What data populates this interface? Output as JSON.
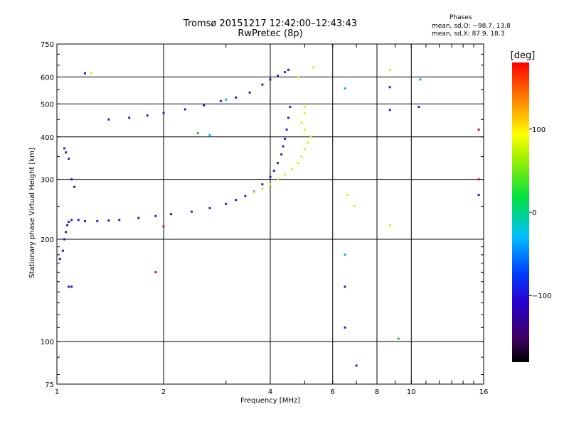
{
  "header": {
    "title_line1": "Tromsø 20151217 12:42:00–12:43:43",
    "title_line2": "RwPretec (8p)",
    "phases_heading": "Phases",
    "phases_o": "mean, sd,O: −98.7, 13.8",
    "phases_x": "mean, sd,X:  87.9, 18.3"
  },
  "colorbar": {
    "label": "[deg]",
    "range": [
      -180,
      180
    ],
    "tick_labels": [
      "100",
      "0",
      "−100"
    ],
    "tick_values": [
      100,
      0,
      -100
    ]
  },
  "chart_data": {
    "type": "scatter",
    "xlabel": "Frequency [MHz]",
    "ylabel": "Stationary phase Virtual Height [km]",
    "xscale": "log",
    "yscale": "log",
    "xlim": [
      1,
      16
    ],
    "ylim": [
      75,
      750
    ],
    "x_ticks": [
      1,
      2,
      4,
      6,
      8,
      10,
      16
    ],
    "x_tick_labels": [
      "1",
      "2",
      "4",
      "6",
      "8",
      "10",
      "16"
    ],
    "y_ticks": [
      75,
      100,
      200,
      300,
      400,
      500,
      600,
      750
    ],
    "y_tick_labels": [
      "75",
      "100",
      "200",
      "300",
      "400",
      "500",
      "600",
      "750"
    ],
    "grid": true,
    "series": [
      {
        "color": "#2020d0",
        "points": [
          [
            1.02,
            175
          ],
          [
            1.04,
            185
          ],
          [
            1.05,
            200
          ],
          [
            1.06,
            210
          ],
          [
            1.07,
            220
          ],
          [
            1.08,
            225
          ],
          [
            1.1,
            228
          ],
          [
            1.15,
            228
          ],
          [
            1.2,
            226
          ],
          [
            1.3,
            226
          ],
          [
            1.4,
            227
          ],
          [
            1.5,
            228
          ],
          [
            1.7,
            231
          ],
          [
            1.9,
            234
          ],
          [
            2.1,
            237
          ],
          [
            2.4,
            241
          ],
          [
            2.7,
            247
          ],
          [
            3.0,
            254
          ],
          [
            3.2,
            261
          ],
          [
            3.4,
            268
          ],
          [
            3.6,
            276
          ],
          [
            3.8,
            290
          ],
          [
            4.0,
            305
          ],
          [
            4.1,
            318
          ],
          [
            4.2,
            335
          ],
          [
            4.3,
            355
          ],
          [
            4.35,
            375
          ],
          [
            4.4,
            395
          ],
          [
            4.45,
            420
          ],
          [
            4.5,
            455
          ],
          [
            4.55,
            490
          ],
          [
            1.05,
            370
          ],
          [
            1.06,
            360
          ],
          [
            1.08,
            345
          ],
          [
            1.1,
            300
          ],
          [
            1.12,
            285
          ],
          [
            1.08,
            145
          ],
          [
            1.1,
            145
          ],
          [
            1.4,
            450
          ],
          [
            1.6,
            455
          ],
          [
            1.8,
            462
          ],
          [
            2.0,
            470
          ],
          [
            2.3,
            482
          ],
          [
            2.6,
            495
          ],
          [
            2.9,
            510
          ],
          [
            3.2,
            522
          ],
          [
            3.5,
            540
          ],
          [
            3.8,
            570
          ],
          [
            4.0,
            590
          ],
          [
            4.2,
            605
          ],
          [
            4.4,
            620
          ],
          [
            4.5,
            630
          ],
          [
            1.2,
            615
          ],
          [
            6.5,
            145
          ],
          [
            6.5,
            110
          ],
          [
            8.7,
            480
          ],
          [
            8.7,
            560
          ],
          [
            10.5,
            490
          ],
          [
            15.5,
            270
          ],
          [
            7.0,
            85
          ]
        ]
      },
      {
        "color": "#e8e820",
        "points": [
          [
            3.6,
            275
          ],
          [
            3.8,
            282
          ],
          [
            4.0,
            290
          ],
          [
            4.2,
            300
          ],
          [
            4.4,
            310
          ],
          [
            4.6,
            322
          ],
          [
            4.8,
            335
          ],
          [
            4.9,
            350
          ],
          [
            5.0,
            368
          ],
          [
            5.1,
            385
          ],
          [
            5.2,
            400
          ],
          [
            5.0,
            420
          ],
          [
            4.9,
            440
          ],
          [
            5.0,
            470
          ],
          [
            5.0,
            490
          ],
          [
            4.8,
            600
          ],
          [
            5.3,
            640
          ],
          [
            6.6,
            270
          ],
          [
            6.9,
            250
          ],
          [
            8.7,
            630
          ],
          [
            8.7,
            220
          ],
          [
            1.25,
            615
          ]
        ]
      },
      {
        "color": "#00b0f0",
        "points": [
          [
            2.7,
            405
          ],
          [
            3.0,
            515
          ],
          [
            6.5,
            555
          ],
          [
            6.5,
            180
          ],
          [
            10.6,
            590
          ]
        ]
      },
      {
        "color": "#20c020",
        "points": [
          [
            2.5,
            410
          ],
          [
            9.2,
            102
          ]
        ]
      },
      {
        "color": "#e01010",
        "points": [
          [
            2.0,
            218
          ],
          [
            1.9,
            160
          ],
          [
            15.5,
            420
          ],
          [
            15.5,
            300
          ]
        ]
      }
    ]
  }
}
